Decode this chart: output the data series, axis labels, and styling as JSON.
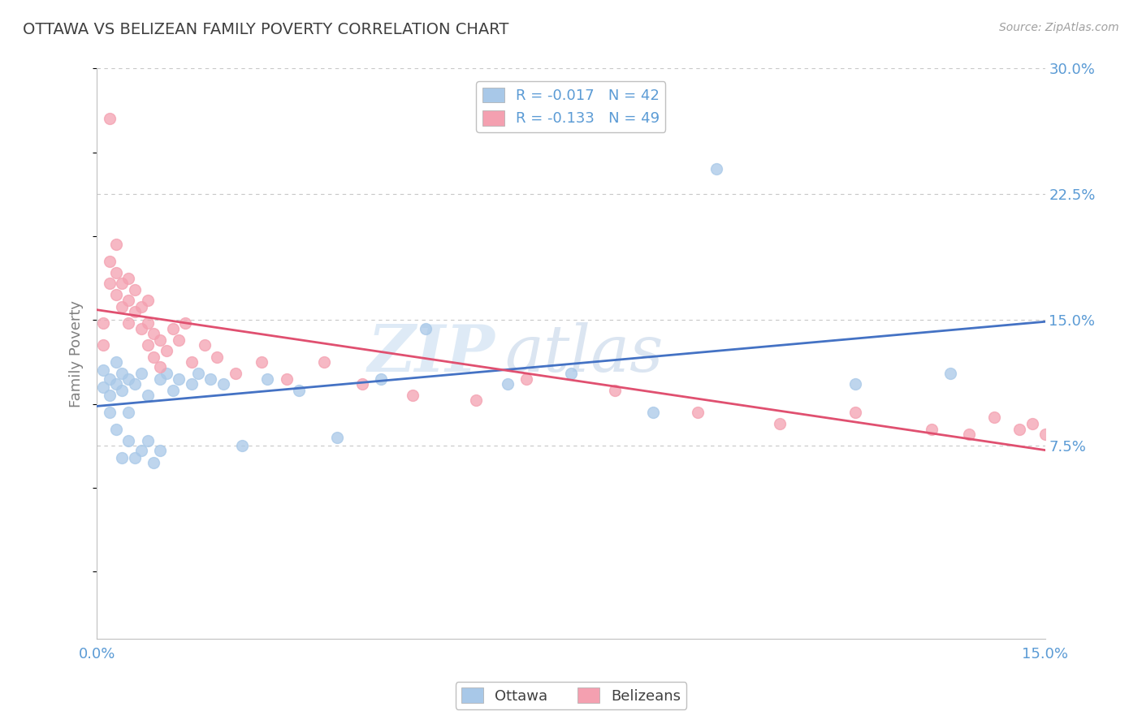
{
  "title": "OTTAWA VS BELIZEAN FAMILY POVERTY CORRELATION CHART",
  "source": "Source: ZipAtlas.com",
  "ylabel": "Family Poverty",
  "xlim": [
    0.0,
    0.15
  ],
  "ylim": [
    -0.04,
    0.3
  ],
  "xticks": [
    0.0,
    0.025,
    0.05,
    0.075,
    0.1,
    0.125,
    0.15
  ],
  "xticklabels": [
    "0.0%",
    "",
    "",
    "",
    "",
    "",
    "15.0%"
  ],
  "yticks": [
    0.075,
    0.15,
    0.225,
    0.3
  ],
  "yticklabels": [
    "7.5%",
    "15.0%",
    "22.5%",
    "30.0%"
  ],
  "legend_entries": [
    {
      "label": "R = -0.017   N = 42",
      "color": "#a8c8e8"
    },
    {
      "label": "R = -0.133   N = 49",
      "color": "#f4a0b0"
    }
  ],
  "ottawa_color": "#a8c8e8",
  "belizean_color": "#f4a0b0",
  "ottawa_line_color": "#4472c4",
  "belizean_line_color": "#e05070",
  "watermark_zip": "ZIP",
  "watermark_atlas": "atlas",
  "background_color": "#ffffff",
  "title_color": "#404040",
  "axis_label_color": "#808080",
  "tick_color": "#5b9bd5",
  "grid_color": "#c8c8c8",
  "ottawa_x": [
    0.001,
    0.001,
    0.002,
    0.002,
    0.002,
    0.003,
    0.003,
    0.003,
    0.004,
    0.004,
    0.004,
    0.005,
    0.005,
    0.005,
    0.006,
    0.006,
    0.007,
    0.007,
    0.008,
    0.008,
    0.009,
    0.01,
    0.01,
    0.011,
    0.012,
    0.013,
    0.015,
    0.016,
    0.018,
    0.02,
    0.023,
    0.027,
    0.032,
    0.038,
    0.045,
    0.052,
    0.065,
    0.075,
    0.088,
    0.098,
    0.12,
    0.135
  ],
  "ottawa_y": [
    0.11,
    0.12,
    0.105,
    0.115,
    0.095,
    0.112,
    0.125,
    0.085,
    0.118,
    0.108,
    0.068,
    0.095,
    0.115,
    0.078,
    0.112,
    0.068,
    0.118,
    0.072,
    0.105,
    0.078,
    0.065,
    0.115,
    0.072,
    0.118,
    0.108,
    0.115,
    0.112,
    0.118,
    0.115,
    0.112,
    0.075,
    0.115,
    0.108,
    0.08,
    0.115,
    0.145,
    0.112,
    0.118,
    0.095,
    0.24,
    0.112,
    0.118
  ],
  "belizean_x": [
    0.001,
    0.001,
    0.002,
    0.002,
    0.003,
    0.003,
    0.003,
    0.004,
    0.004,
    0.005,
    0.005,
    0.005,
    0.006,
    0.006,
    0.007,
    0.007,
    0.008,
    0.008,
    0.008,
    0.009,
    0.009,
    0.01,
    0.01,
    0.011,
    0.012,
    0.013,
    0.014,
    0.015,
    0.017,
    0.019,
    0.022,
    0.026,
    0.03,
    0.036,
    0.042,
    0.05,
    0.06,
    0.068,
    0.082,
    0.095,
    0.108,
    0.12,
    0.132,
    0.138,
    0.142,
    0.146,
    0.148,
    0.15,
    0.002
  ],
  "belizean_y": [
    0.135,
    0.148,
    0.172,
    0.185,
    0.165,
    0.178,
    0.195,
    0.158,
    0.172,
    0.148,
    0.162,
    0.175,
    0.155,
    0.168,
    0.145,
    0.158,
    0.135,
    0.148,
    0.162,
    0.128,
    0.142,
    0.122,
    0.138,
    0.132,
    0.145,
    0.138,
    0.148,
    0.125,
    0.135,
    0.128,
    0.118,
    0.125,
    0.115,
    0.125,
    0.112,
    0.105,
    0.102,
    0.115,
    0.108,
    0.095,
    0.088,
    0.095,
    0.085,
    0.082,
    0.092,
    0.085,
    0.088,
    0.082,
    0.27
  ]
}
